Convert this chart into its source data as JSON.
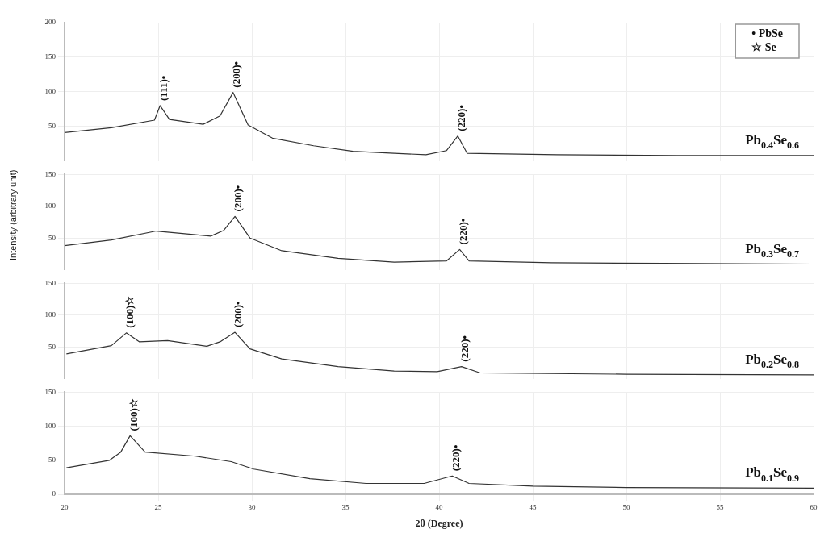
{
  "chart_data": [
    {
      "type": "line",
      "xlim": [
        20,
        60
      ],
      "xticks": [
        20,
        25,
        30,
        35,
        40,
        45,
        50,
        55,
        60
      ],
      "ylim": [
        0,
        200
      ],
      "yticks": [
        50,
        100,
        150,
        200
      ],
      "grid": true,
      "marker": "none",
      "line_style": "solid",
      "tick_labels": "y",
      "series": [
        {
          "name": "Pb$_{0.4}$Se$_{0.6}$",
          "color": "#333333",
          "x": [
            20.0,
            22.5,
            24.8,
            25.1,
            25.6,
            27.4,
            28.3,
            29.0,
            29.8,
            31.1,
            33.3,
            35.4,
            37.6,
            39.3,
            40.4,
            41.0,
            41.5,
            46.3,
            52.7,
            60.0
          ],
          "values": [
            41,
            48,
            59,
            80,
            60,
            53,
            65,
            99,
            52,
            33,
            22,
            14,
            11,
            9,
            15,
            36,
            11,
            9,
            8,
            8
          ]
        }
      ],
      "annotations": [
        {
          "text": "(111)•",
          "x": 25.1,
          "y": 80
        },
        {
          "text": "(200)•",
          "x": 29.0,
          "y": 99
        },
        {
          "text": "(220)•",
          "x": 41.0,
          "y": 36
        },
        "• PbSe",
        "☆ Se"
      ]
    },
    {
      "type": "line",
      "xlim": [
        20,
        60
      ],
      "xticks": [
        20,
        25,
        30,
        35,
        40,
        45,
        50,
        55,
        60
      ],
      "ylim": [
        0,
        150
      ],
      "yticks": [
        50,
        100,
        150
      ],
      "grid": true,
      "marker": "none",
      "line_style": "solid",
      "tick_labels": "y",
      "series": [
        {
          "name": "Pb$_{0.3}$Se$_{0.7}$",
          "color": "#333333",
          "x": [
            20.0,
            22.5,
            24.9,
            27.8,
            28.5,
            29.1,
            29.9,
            31.6,
            34.6,
            37.6,
            40.4,
            41.1,
            41.6,
            46.0,
            52.0,
            60.0
          ],
          "values": [
            38,
            47,
            61,
            53,
            62,
            84,
            50,
            30,
            18,
            12,
            14,
            32,
            14,
            11,
            10,
            9
          ]
        }
      ],
      "annotations": [
        {
          "text": "(200)•",
          "x": 29.1,
          "y": 84
        },
        {
          "text": "(220)•",
          "x": 41.1,
          "y": 32
        }
      ]
    },
    {
      "type": "line",
      "ylabel": "Intensity (arbitrary unit)",
      "xlim": [
        20,
        60
      ],
      "xticks": [
        20,
        25,
        30,
        35,
        40,
        45,
        50,
        55,
        60
      ],
      "ylim": [
        0,
        150
      ],
      "yticks": [
        50,
        100,
        150
      ],
      "grid": true,
      "marker": "none",
      "line_style": "solid",
      "tick_labels": "y",
      "series": [
        {
          "name": "Pb$_{0.2}$Se$_{0.8}$",
          "color": "#333333",
          "x": [
            20.1,
            22.5,
            23.3,
            24.0,
            25.5,
            27.6,
            28.3,
            29.1,
            29.9,
            31.6,
            34.6,
            37.6,
            39.9,
            41.2,
            42.2,
            50.0,
            60.0
          ],
          "values": [
            39,
            52,
            72,
            58,
            60,
            51,
            58,
            73,
            47,
            31,
            19,
            12,
            11,
            19,
            9,
            7,
            6
          ]
        }
      ],
      "annotations": [
        {
          "text": "(100)☆",
          "x": 23.3,
          "y": 72
        },
        {
          "text": "(200)•",
          "x": 29.1,
          "y": 73
        },
        {
          "text": "(220)•",
          "x": 41.2,
          "y": 19
        }
      ]
    },
    {
      "type": "line",
      "xlabel": "2θ (Degree)",
      "xlim": [
        20,
        60
      ],
      "xticks": [
        20,
        25,
        30,
        35,
        40,
        45,
        50,
        55,
        60
      ],
      "ylim": [
        0,
        150
      ],
      "yticks": [
        0,
        50,
        100,
        150
      ],
      "grid": true,
      "marker": "none",
      "line_style": "solid",
      "series": [
        {
          "name": "Pb$_{0.1}$Se$_{0.9}$",
          "color": "#333333",
          "x": [
            20.1,
            22.4,
            23.0,
            23.5,
            24.3,
            27.0,
            28.9,
            30.1,
            33.1,
            36.1,
            39.2,
            40.7,
            41.6,
            45.0,
            50.0,
            60.0
          ],
          "values": [
            39,
            50,
            62,
            86,
            62,
            56,
            48,
            37,
            23,
            16,
            16,
            27,
            16,
            12,
            10,
            9
          ]
        }
      ],
      "annotations": [
        {
          "text": "(100)☆",
          "x": 23.5,
          "y": 86
        },
        {
          "text": "(220)•",
          "x": 40.7,
          "y": 27
        }
      ]
    }
  ]
}
